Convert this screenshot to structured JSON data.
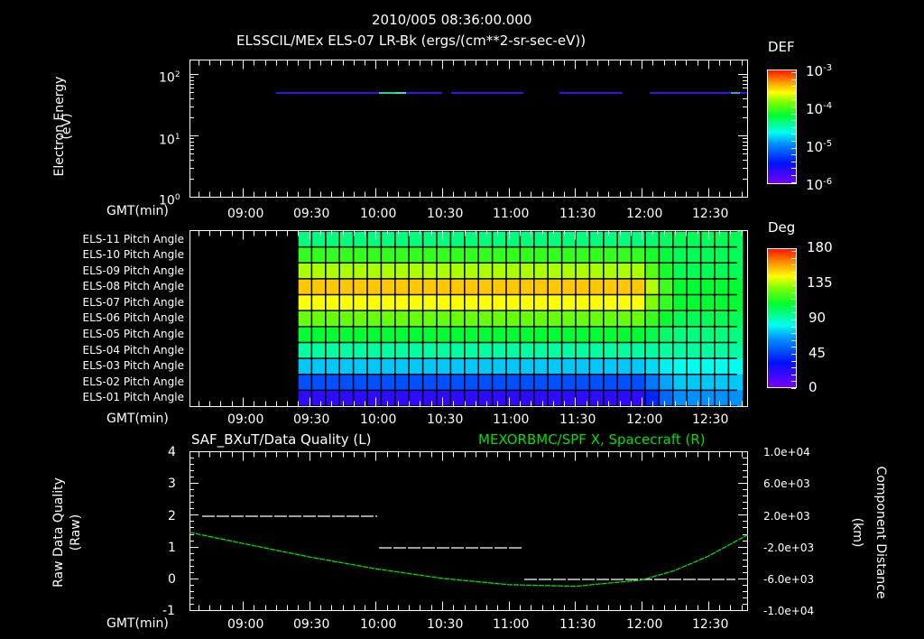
{
  "header": {
    "date_time": "2010/005 08:36:00.000",
    "subtitle": "ELSSCIL/MEx ELS-07 LR-Bk  (ergs/(cm**2-sr-sec-eV))"
  },
  "time_axis": {
    "label": "GMT(min)",
    "ticks": [
      "09:00",
      "09:30",
      "10:00",
      "10:30",
      "11:00",
      "11:30",
      "12:00",
      "12:30"
    ]
  },
  "panel1": {
    "ylabel_line1": "Electron Energy",
    "ylabel_line2": "(eV)",
    "yticks": [
      {
        "base": "10",
        "exp": "2"
      },
      {
        "base": "10",
        "exp": "1"
      },
      {
        "base": "10",
        "exp": "0"
      }
    ],
    "colorbar": {
      "title": "DEF",
      "ticks": [
        {
          "base": "10",
          "exp": "-3"
        },
        {
          "base": "10",
          "exp": "-4"
        },
        {
          "base": "10",
          "exp": "-5"
        },
        {
          "base": "10",
          "exp": "-6"
        }
      ]
    }
  },
  "panel2": {
    "rows": [
      "ELS-11 Pitch Angle",
      "ELS-10 Pitch Angle",
      "ELS-09 Pitch Angle",
      "ELS-08 Pitch Angle",
      "ELS-07 Pitch Angle",
      "ELS-06 Pitch Angle",
      "ELS-05 Pitch Angle",
      "ELS-04 Pitch Angle",
      "ELS-03 Pitch Angle",
      "ELS-02 Pitch Angle",
      "ELS-01 Pitch Angle"
    ],
    "colorbar": {
      "title": "Deg",
      "ticks": [
        "180",
        "135",
        "90",
        "45",
        "0"
      ]
    }
  },
  "panel3": {
    "title_left": "SAF_BXuT/Data Quality (L)",
    "title_right": "MEXORBMC/SPF X, Spacecraft (R)",
    "ylabel_left_line1": "Raw Data Quality",
    "ylabel_left_line2": "(Raw)",
    "ylabel_right_line1": "Component Distance",
    "ylabel_right_line2": "(km)",
    "yticks_left": [
      "4",
      "3",
      "2",
      "1",
      "0",
      "-1"
    ],
    "yticks_right": [
      "1.0e+04",
      "6.0e+03",
      "2.0e+03",
      "-2.0e+03",
      "-6.0e+03",
      "-1.0e+04"
    ]
  },
  "colors": {
    "background": "#000000",
    "axes": "#ffffff",
    "right_series": "#00e000",
    "left_series": "#ffffff"
  },
  "chart_data": [
    {
      "type": "heatmap",
      "title": "ELSSCIL/MEx ELS-07 LR-Bk (ergs/(cm**2-sr-sec-eV))",
      "xlabel": "GMT(min)",
      "ylabel": "Electron Energy (eV)",
      "yscale": "log",
      "ylim": [
        1,
        160
      ],
      "xlim": [
        "08:36",
        "12:48"
      ],
      "x_ticks": [
        "09:00",
        "09:30",
        "10:00",
        "10:30",
        "11:00",
        "11:30",
        "12:00",
        "12:30"
      ],
      "colorbar": {
        "label": "DEF",
        "scale": "log",
        "range": [
          1e-06,
          0.001
        ]
      },
      "notes": "Only a thin band of low-DEF (~1e-6 to 1e-5) data near 50 eV from ~09:25 to ~12:48"
    },
    {
      "type": "heatmap",
      "title": "ELS Pitch Angle",
      "xlabel": "GMT(min)",
      "xlim": [
        "08:36",
        "12:48"
      ],
      "data_start": "09:25",
      "data_end": "12:44",
      "rows": [
        "ELS-11",
        "ELS-10",
        "ELS-09",
        "ELS-08",
        "ELS-07",
        "ELS-06",
        "ELS-05",
        "ELS-04",
        "ELS-03",
        "ELS-02",
        "ELS-01"
      ],
      "approx_values_deg_before_1200": [
        90,
        110,
        130,
        150,
        140,
        120,
        100,
        85,
        65,
        40,
        15
      ],
      "approx_values_deg_after_1210": [
        95,
        95,
        95,
        100,
        100,
        95,
        90,
        85,
        75,
        65,
        55
      ],
      "colorbar": {
        "label": "Deg",
        "range": [
          0,
          180
        ],
        "ticks": [
          0,
          45,
          90,
          135,
          180
        ]
      }
    },
    {
      "type": "line",
      "title": "SAF_BXuT/Data Quality (L) / MEXORBMC/SPF X, Spacecraft (R)",
      "xlabel": "GMT(min)",
      "xlim": [
        "08:36",
        "12:48"
      ],
      "series": [
        {
          "name": "SAF_BXuT/Data Quality (L)",
          "axis": "left",
          "ylim": [
            -1,
            4
          ],
          "x": [
            "08:42",
            "10:00",
            "10:01",
            "11:06",
            "11:07",
            "12:44"
          ],
          "values": [
            2,
            2,
            1,
            1,
            0,
            0
          ]
        },
        {
          "name": "MEXORBMC/SPF X, Spacecraft (R)",
          "axis": "right",
          "ylim": [
            -10000,
            10000
          ],
          "x": [
            "08:36",
            "09:00",
            "09:30",
            "10:00",
            "10:30",
            "11:00",
            "11:30",
            "12:00",
            "12:15",
            "12:30",
            "12:48"
          ],
          "values": [
            -200,
            -1600,
            -3300,
            -4800,
            -6000,
            -6800,
            -7000,
            -6200,
            -5000,
            -3200,
            -500
          ]
        }
      ]
    }
  ]
}
